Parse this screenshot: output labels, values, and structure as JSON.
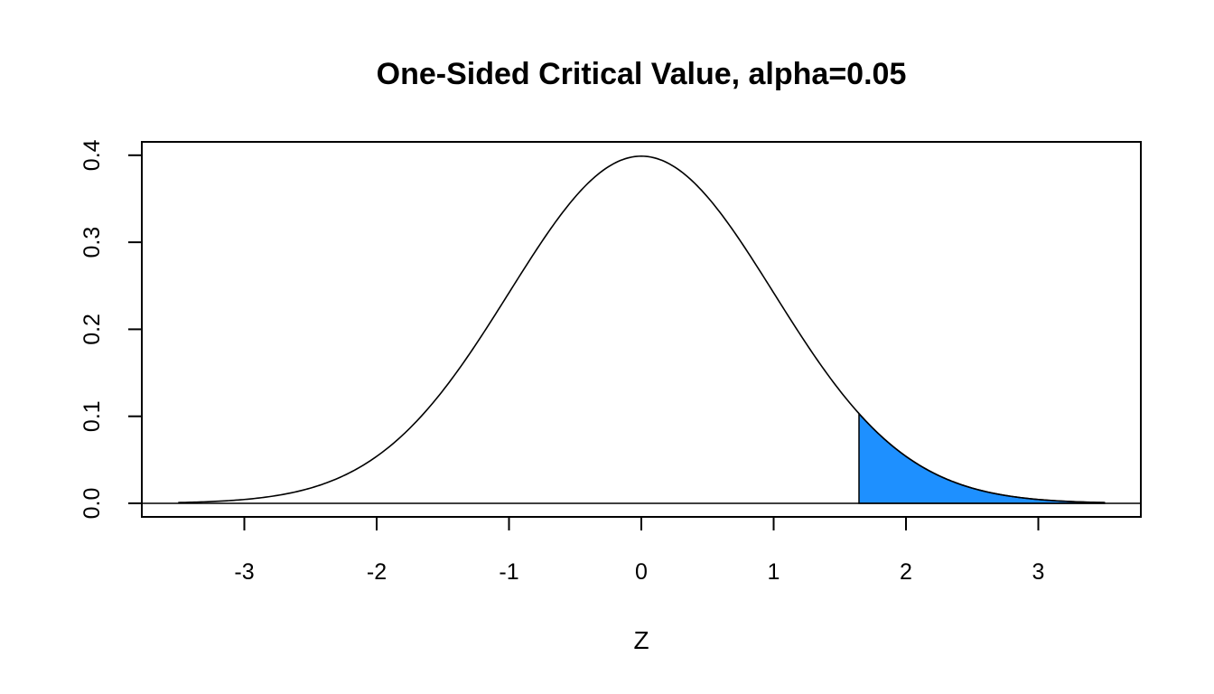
{
  "chart_data": {
    "type": "area",
    "title": "One-Sided Critical Value, alpha=0.05",
    "xlabel": "Z",
    "ylabel": "",
    "xlim": [
      -3.5,
      3.5
    ],
    "ylim": [
      0,
      0.4
    ],
    "x_ticks": [
      -3,
      -2,
      -1,
      0,
      1,
      2,
      3
    ],
    "x_tick_labels": [
      "-3",
      "-2",
      "-1",
      "0",
      "1",
      "2",
      "3"
    ],
    "y_ticks": [
      0,
      0.1,
      0.2,
      0.3,
      0.4
    ],
    "y_tick_labels": [
      "0.0",
      "0.1",
      "0.2",
      "0.3",
      "0.4"
    ],
    "grid": false,
    "series": [
      {
        "distribution": "standard normal density",
        "x_range": [
          -3.5,
          3.5
        ],
        "color": "#000000"
      }
    ],
    "shaded_region": {
      "from": 1.645,
      "to": 3.5,
      "color": "#1E90FF"
    },
    "baseline": 0
  }
}
